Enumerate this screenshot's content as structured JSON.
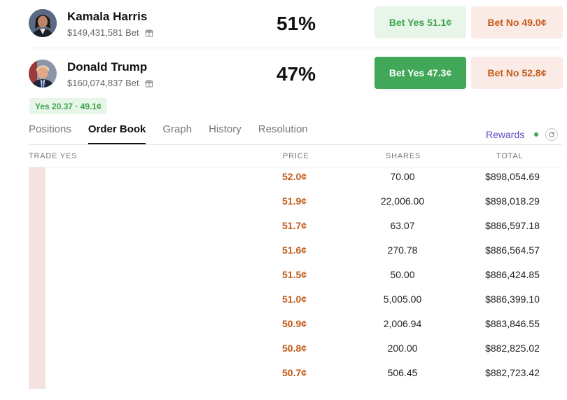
{
  "candidates": [
    {
      "name": "Kamala Harris",
      "volume": "$149,431,581 Bet",
      "chance": "51%",
      "yes_button": "Bet Yes 51.1¢",
      "no_button": "Bet No 49.0¢"
    },
    {
      "name": "Donald Trump",
      "volume": "$160,074,837 Bet",
      "chance": "47%",
      "yes_button": "Bet Yes 47.3¢",
      "no_button": "Bet No 52.8¢"
    }
  ],
  "selected_chip": "Yes 20.37 · 49.1¢",
  "tabs": [
    "Positions",
    "Order Book",
    "Graph",
    "History",
    "Resolution"
  ],
  "active_tab": "Order Book",
  "rewards_label": "Rewards",
  "order_book": {
    "columns": [
      "TRADE YES",
      "PRICE",
      "SHARES",
      "TOTAL"
    ],
    "rows": [
      {
        "price": "52.0¢",
        "shares": "70.00",
        "total": "$898,054.69"
      },
      {
        "price": "51.9¢",
        "shares": "22,006.00",
        "total": "$898,018.29"
      },
      {
        "price": "51.7¢",
        "shares": "63.07",
        "total": "$886,597.18"
      },
      {
        "price": "51.6¢",
        "shares": "270.78",
        "total": "$886,564.57"
      },
      {
        "price": "51.5¢",
        "shares": "50.00",
        "total": "$886,424.85"
      },
      {
        "price": "51.0¢",
        "shares": "5,005.00",
        "total": "$886,399.10"
      },
      {
        "price": "50.9¢",
        "shares": "2,006.94",
        "total": "$883,846.55"
      },
      {
        "price": "50.8¢",
        "shares": "200.00",
        "total": "$882,825.02"
      },
      {
        "price": "50.7¢",
        "shares": "506.45",
        "total": "$882,723.42"
      }
    ]
  },
  "colors": {
    "yes_green": "#41a85a",
    "no_orange": "#c35a18",
    "rewards_purple": "#5b4bc4",
    "depth_bar": "#f4e2e1"
  },
  "icons": [
    "gift-icon",
    "refresh-icon"
  ]
}
